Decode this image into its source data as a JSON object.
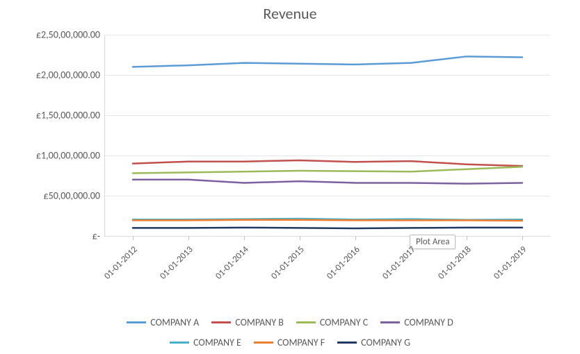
{
  "chart": {
    "type": "line",
    "title": "Revenue",
    "title_fontsize": 22,
    "background_color": "#ffffff",
    "grid_color": "#e6e6e6",
    "axis_color": "#d9d9d9",
    "text_color": "#595959",
    "line_width": 2.5,
    "tooltip": {
      "text": "Plot Area",
      "x_index": 5,
      "y_value": 0
    },
    "y_axis": {
      "min": 0,
      "max": 25000000,
      "tick_step": 5000000,
      "tick_labels": [
        "£-",
        "£50,00,000.00",
        "£1,00,00,000.00",
        "£1,50,00,000.00",
        "£2,00,00,000.00",
        "£2,50,00,000.00"
      ],
      "label_fontsize": 14
    },
    "x_axis": {
      "categories": [
        "01-01-2012",
        "01-01-2013",
        "01-01-2014",
        "01-01-2015",
        "01-01-2016",
        "01-01-2017",
        "01-01-2018",
        "01-01-2019"
      ],
      "label_rotation": -45,
      "label_fontsize": 13
    },
    "series": [
      {
        "name": "COMPANY A",
        "color": "#5b9bd5",
        "values": [
          21000000,
          21200000,
          21500000,
          21400000,
          21300000,
          21500000,
          22300000,
          22200000
        ]
      },
      {
        "name": "COMPANY B",
        "color": "#c0504d",
        "values": [
          9000000,
          9250000,
          9250000,
          9400000,
          9200000,
          9300000,
          8900000,
          8700000
        ]
      },
      {
        "name": "COMPANY C",
        "color": "#9bbb59",
        "values": [
          7800000,
          7900000,
          8000000,
          8100000,
          8050000,
          8000000,
          8300000,
          8600000
        ]
      },
      {
        "name": "COMPANY D",
        "color": "#7d60a0",
        "values": [
          7000000,
          7000000,
          6600000,
          6800000,
          6600000,
          6600000,
          6500000,
          6600000
        ]
      },
      {
        "name": "COMPANY E",
        "color": "#46b1c9",
        "values": [
          2050000,
          2050000,
          2100000,
          2150000,
          2050000,
          2100000,
          2000000,
          2050000
        ]
      },
      {
        "name": "COMPANY F",
        "color": "#ed7d31",
        "values": [
          1950000,
          1950000,
          2000000,
          2000000,
          1950000,
          1950000,
          1950000,
          1900000
        ]
      },
      {
        "name": "COMPANY G",
        "color": "#1f3864",
        "values": [
          1000000,
          1000000,
          1050000,
          1000000,
          950000,
          1000000,
          1050000,
          1050000
        ]
      }
    ],
    "legend": {
      "position": "bottom",
      "rows": [
        [
          "COMPANY A",
          "COMPANY B",
          "COMPANY C",
          "COMPANY D"
        ],
        [
          "COMPANY E",
          "COMPANY F",
          "COMPANY G"
        ]
      ],
      "fontsize": 14
    }
  }
}
